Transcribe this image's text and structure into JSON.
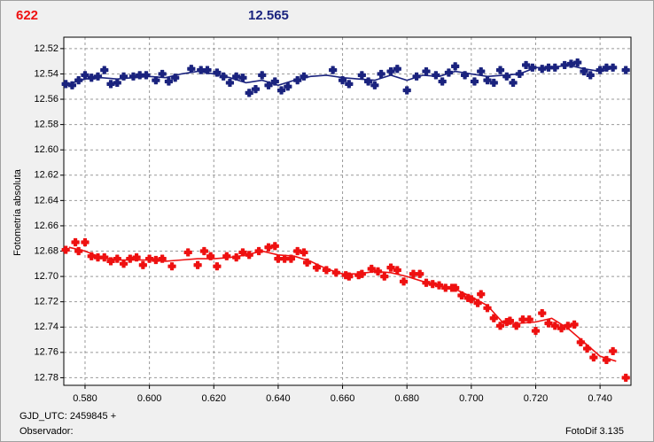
{
  "header": {
    "left": "622",
    "center": "12.565"
  },
  "footer": {
    "gjd": "GJD_UTC: 2459845 +",
    "observer": "Observador:",
    "software": "FotoDif 3.135"
  },
  "chart_data": {
    "type": "scatter",
    "y_label": "Fotometría absoluta",
    "grid": true,
    "y_inverted": true,
    "xlim": [
      0.5734,
      0.7496
    ],
    "ylim": [
      12.786,
      12.511
    ],
    "xticks": [
      {
        "value": 0.58,
        "label": "0.580"
      },
      {
        "value": 0.6,
        "label": "0.600"
      },
      {
        "value": 0.62,
        "label": "0.620"
      },
      {
        "value": 0.64,
        "label": "0.640"
      },
      {
        "value": 0.66,
        "label": "0.660"
      },
      {
        "value": 0.68,
        "label": "0.680"
      },
      {
        "value": 0.7,
        "label": "0.700"
      },
      {
        "value": 0.72,
        "label": "0.720"
      },
      {
        "value": 0.74,
        "label": "0.740"
      }
    ],
    "yticks": [
      12.52,
      12.54,
      12.56,
      12.58,
      {
        "value": 12.6,
        "label": "12.60"
      },
      12.62,
      12.64,
      12.66,
      12.68,
      {
        "value": 12.7,
        "label": "12.70"
      },
      12.72,
      12.74,
      12.76,
      12.78
    ],
    "trend_x": [
      0.575,
      0.58,
      0.585,
      0.59,
      0.595,
      0.6,
      0.605,
      0.61,
      0.615,
      0.62,
      0.625,
      0.63,
      0.635,
      0.64,
      0.645,
      0.65,
      0.655,
      0.66,
      0.665,
      0.67,
      0.675,
      0.68,
      0.685,
      0.69,
      0.695,
      0.7,
      0.705,
      0.71,
      0.715,
      0.72,
      0.725,
      0.73,
      0.735,
      0.74,
      0.745
    ],
    "series": [
      {
        "color": "#1a237e",
        "x": [
          0.574,
          0.576,
          0.578,
          0.58,
          0.582,
          0.584,
          0.586,
          0.588,
          0.59,
          0.592,
          0.595,
          0.597,
          0.599,
          0.602,
          0.604,
          0.606,
          0.608,
          0.613,
          0.616,
          0.618,
          0.621,
          0.623,
          0.625,
          0.627,
          0.629,
          0.631,
          0.633,
          0.635,
          0.637,
          0.639,
          0.641,
          0.643,
          0.646,
          0.648,
          0.657,
          0.66,
          0.662,
          0.666,
          0.668,
          0.67,
          0.672,
          0.675,
          0.677,
          0.68,
          0.683,
          0.686,
          0.689,
          0.691,
          0.693,
          0.695,
          0.698,
          0.701,
          0.703,
          0.705,
          0.707,
          0.709,
          0.711,
          0.713,
          0.715,
          0.717,
          0.719,
          0.722,
          0.724,
          0.726,
          0.729,
          0.731,
          0.733,
          0.735,
          0.737,
          0.74,
          0.742,
          0.744,
          0.748
        ],
        "values": [
          12.548,
          12.549,
          12.545,
          12.541,
          12.543,
          12.542,
          12.537,
          12.548,
          12.547,
          12.542,
          12.542,
          12.541,
          12.541,
          12.545,
          12.54,
          12.546,
          12.543,
          12.536,
          12.537,
          12.537,
          12.539,
          12.542,
          12.547,
          12.542,
          12.543,
          12.555,
          12.552,
          12.541,
          12.549,
          12.546,
          12.553,
          12.55,
          12.545,
          12.542,
          12.537,
          12.545,
          12.548,
          12.541,
          12.546,
          12.549,
          12.54,
          12.538,
          12.536,
          12.553,
          12.542,
          12.538,
          12.541,
          12.546,
          12.539,
          12.534,
          12.541,
          12.546,
          12.538,
          12.545,
          12.547,
          12.537,
          12.542,
          12.547,
          12.54,
          12.533,
          12.535,
          12.536,
          12.535,
          12.535,
          12.533,
          12.532,
          12.531,
          12.538,
          12.541,
          12.537,
          12.535,
          12.535,
          12.537
        ],
        "trend": [
          12.548,
          12.544,
          12.543,
          12.544,
          12.543,
          12.542,
          12.543,
          12.54,
          12.538,
          12.54,
          12.543,
          12.547,
          12.545,
          12.549,
          12.545,
          12.542,
          12.541,
          12.543,
          12.544,
          12.545,
          12.541,
          12.545,
          12.541,
          12.542,
          12.538,
          12.54,
          12.542,
          12.541,
          12.54,
          12.535,
          12.535,
          12.533,
          12.536,
          12.538,
          12.535
        ]
      },
      {
        "color": "#ee1111",
        "x": [
          0.574,
          0.577,
          0.578,
          0.58,
          0.582,
          0.584,
          0.586,
          0.588,
          0.59,
          0.592,
          0.594,
          0.596,
          0.598,
          0.6,
          0.602,
          0.604,
          0.607,
          0.612,
          0.615,
          0.617,
          0.619,
          0.621,
          0.624,
          0.627,
          0.629,
          0.631,
          0.634,
          0.637,
          0.639,
          0.64,
          0.642,
          0.644,
          0.646,
          0.648,
          0.649,
          0.652,
          0.655,
          0.658,
          0.661,
          0.662,
          0.665,
          0.666,
          0.669,
          0.671,
          0.673,
          0.675,
          0.677,
          0.679,
          0.682,
          0.684,
          0.686,
          0.688,
          0.69,
          0.692,
          0.694,
          0.695,
          0.697,
          0.699,
          0.7,
          0.702,
          0.703,
          0.705,
          0.707,
          0.709,
          0.711,
          0.712,
          0.714,
          0.716,
          0.718,
          0.72,
          0.722,
          0.724,
          0.726,
          0.728,
          0.73,
          0.732,
          0.734,
          0.736,
          0.738,
          0.742,
          0.744,
          0.748
        ],
        "values": [
          12.679,
          12.673,
          12.68,
          12.673,
          12.684,
          12.685,
          12.685,
          12.688,
          12.686,
          12.69,
          12.686,
          12.685,
          12.691,
          12.686,
          12.687,
          12.686,
          12.692,
          12.681,
          12.691,
          12.68,
          12.684,
          12.692,
          12.684,
          12.685,
          12.681,
          12.683,
          12.68,
          12.677,
          12.676,
          12.686,
          12.686,
          12.686,
          12.68,
          12.681,
          12.689,
          12.693,
          12.695,
          12.697,
          12.699,
          12.7,
          12.699,
          12.698,
          12.694,
          12.696,
          12.7,
          12.693,
          12.695,
          12.704,
          12.698,
          12.698,
          12.705,
          12.706,
          12.707,
          12.709,
          12.709,
          12.709,
          12.715,
          12.717,
          12.718,
          12.721,
          12.714,
          12.725,
          12.733,
          12.739,
          12.736,
          12.735,
          12.739,
          12.734,
          12.734,
          12.743,
          12.729,
          12.737,
          12.739,
          12.741,
          12.739,
          12.738,
          12.752,
          12.757,
          12.764,
          12.766,
          12.759,
          12.78
        ],
        "trend": [
          12.677,
          12.68,
          12.685,
          12.687,
          12.687,
          12.687,
          12.688,
          12.687,
          12.686,
          12.686,
          12.685,
          12.683,
          12.68,
          12.683,
          12.684,
          12.688,
          12.694,
          12.698,
          12.698,
          12.696,
          12.697,
          12.7,
          12.704,
          12.707,
          12.71,
          12.716,
          12.723,
          12.737,
          12.737,
          12.736,
          12.733,
          12.741,
          12.752,
          12.763,
          12.767
        ]
      }
    ]
  }
}
